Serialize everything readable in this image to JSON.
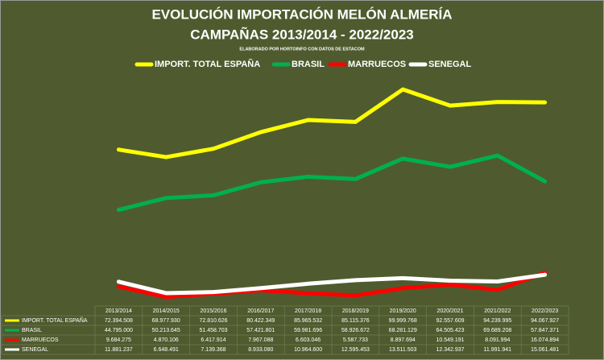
{
  "chart_data": {
    "type": "line",
    "title": "EVOLUCIÓN IMPORTACIÓN MELÓN ALMERÍA",
    "subtitle": "CAMPAÑAS 2013/2014 - 2022/2023",
    "note": "ELABORADO POR HORTOINFO CON DATOS DE ESTACOM",
    "categories": [
      "2013/2014",
      "2014/2015",
      "2015/2016",
      "2016/2017",
      "2017/2018",
      "2018/2019",
      "2019/2020",
      "2020/2021",
      "2021/2022",
      "2022/2023"
    ],
    "series": [
      {
        "name": "IMPORT. TOTAL ESPAÑA",
        "color": "#ffff00",
        "values": [
          72394508,
          68977930,
          72810626,
          80422349,
          85965532,
          85115376,
          99999768,
          92557609,
          94239995,
          94067927
        ],
        "value_labels": [
          "72.394.508",
          "68.977.930",
          "72.810.626",
          "80.422.349",
          "85.965.532",
          "85.115.376",
          "99.999.768",
          "92.557.609",
          "94.239.995",
          "94.067.927"
        ]
      },
      {
        "name": "BRASIL",
        "color": "#00b050",
        "values": [
          44795000,
          50213645,
          51458703,
          57421801,
          59981696,
          58926672,
          68281129,
          64505423,
          69689208,
          57847371
        ],
        "value_labels": [
          "44.795.000",
          "50.213.645",
          "51.458.703",
          "57.421.801",
          "59.981.696",
          "58.926.672",
          "68.281.129",
          "64.505.423",
          "69.689.208",
          "57.847.371"
        ]
      },
      {
        "name": "MARRUECOS",
        "color": "#ff0000",
        "values": [
          9684275,
          4870106,
          6417914,
          7967088,
          6603046,
          5587733,
          8897694,
          10549191,
          8091994,
          16074894
        ],
        "value_labels": [
          "9.684.275",
          "4.870.106",
          "6.417.914",
          "7.967.088",
          "6.603.046",
          "5.587.733",
          "8.897.694",
          "10.549.191",
          "8.091.994",
          "16.074.894"
        ]
      },
      {
        "name": "SENEGAL",
        "color": "#ffffff",
        "values": [
          11881237,
          6648491,
          7139368,
          8933080,
          10964600,
          12595453,
          13511503,
          12342937,
          11991941,
          15061481
        ],
        "value_labels": [
          "11.881.237",
          "6.648.491",
          "7.139.368",
          "8.933.080",
          "10.964.600",
          "12.595.453",
          "13.511.503",
          "12.342.937",
          "11.991.941",
          "15.061.481"
        ]
      }
    ]
  }
}
